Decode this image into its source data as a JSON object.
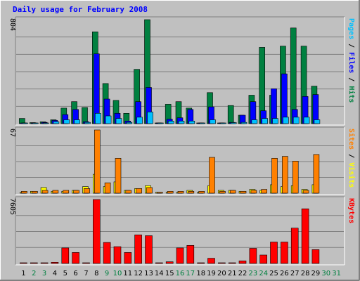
{
  "chart_data": {
    "type": "bar",
    "title": "Daily usage for February 2008",
    "categories": [
      "1",
      "2",
      "3",
      "4",
      "5",
      "6",
      "7",
      "8",
      "9",
      "10",
      "11",
      "12",
      "13",
      "14",
      "15",
      "16",
      "17",
      "18",
      "19",
      "20",
      "21",
      "22",
      "23",
      "24",
      "25",
      "26",
      "27",
      "28",
      "29",
      "30",
      "31"
    ],
    "weekend_days": [
      "2",
      "3",
      "9",
      "10",
      "16",
      "17",
      "23",
      "24",
      "30",
      "31"
    ],
    "colors": {
      "hits": "#008040",
      "files": "#0000ff",
      "pages": "#00c0ff",
      "visits": "#ffff00",
      "sites": "#ff8000",
      "kbytes": "#ff0000",
      "title": "#0000ff",
      "weekend": "#008040",
      "weekday": "#000000"
    },
    "panels": [
      {
        "name": "hits_files_pages",
        "ymax": 804,
        "ymax_label": "804",
        "legend": [
          {
            "text": "Pages",
            "color": "#00c0ff"
          },
          {
            "text": " / ",
            "color": "#000000"
          },
          {
            "text": "Files",
            "color": "#0000ff"
          },
          {
            "text": " / ",
            "color": "#000000"
          },
          {
            "text": "Hits",
            "color": "#008040"
          }
        ],
        "series": [
          {
            "name": "Hits",
            "color": "#008040",
            "values": [
              40,
              8,
              14,
              30,
              120,
              170,
              125,
              710,
              310,
              180,
              80,
              420,
              804,
              5,
              150,
              170,
              120,
              5,
              240,
              5,
              140,
              65,
              220,
              590,
              220,
              600,
              740,
              600,
              290,
              0,
              0
            ]
          },
          {
            "name": "Files",
            "color": "#0000ff",
            "values": [
              5,
              4,
              10,
              25,
              70,
              110,
              15,
              540,
              190,
              80,
              20,
              170,
              280,
              4,
              35,
              45,
              110,
              4,
              130,
              4,
              10,
              65,
              170,
              100,
              270,
              385,
              110,
              210,
              225,
              0,
              0
            ]
          },
          {
            "name": "Pages",
            "color": "#00c0ff",
            "values": [
              3,
              3,
              5,
              15,
              30,
              30,
              10,
              80,
              60,
              40,
              10,
              50,
              90,
              3,
              20,
              20,
              20,
              3,
              30,
              3,
              8,
              10,
              30,
              40,
              40,
              50,
              50,
              50,
              30,
              0,
              0
            ]
          }
        ]
      },
      {
        "name": "visits_sites",
        "ymax": 67,
        "ymax_label": "67",
        "legend": [
          {
            "text": "Sites",
            "color": "#ff8000"
          },
          {
            "text": " / ",
            "color": "#000000"
          },
          {
            "text": "Visits",
            "color": "#ffff00"
          }
        ],
        "series": [
          {
            "name": "Visits",
            "color": "#ffff00",
            "values": [
              1,
              2,
              6,
              2,
              2,
              3,
              7,
              20,
              7,
              12,
              3,
              5,
              8,
              1,
              1,
              1,
              3,
              1,
              8,
              3,
              3,
              2,
              4,
              3,
              9,
              7,
              8,
              4,
              9,
              0,
              0
            ]
          },
          {
            "name": "Sites",
            "color": "#ff8000",
            "values": [
              2,
              2,
              3,
              3,
              3,
              3,
              5,
              67,
              11,
              37,
              3,
              5,
              6,
              1,
              2,
              2,
              2,
              2,
              38,
              2,
              3,
              2,
              3,
              4,
              37,
              39,
              34,
              3,
              41,
              0,
              0
            ]
          }
        ]
      },
      {
        "name": "kbytes",
        "ymax": 7605,
        "ymax_label": "7605",
        "legend": [
          {
            "text": "KBytes",
            "color": "#ff0000"
          }
        ],
        "series": [
          {
            "name": "KBytes",
            "color": "#ff0000",
            "values": [
              10,
              10,
              10,
              140,
              1850,
              1300,
              60,
              7605,
              2500,
              2000,
              1300,
              3400,
              3300,
              5,
              200,
              1850,
              2150,
              5,
              620,
              10,
              10,
              300,
              1800,
              1000,
              2550,
              2550,
              4200,
              6500,
              1650,
              0,
              0
            ]
          }
        ]
      }
    ]
  }
}
